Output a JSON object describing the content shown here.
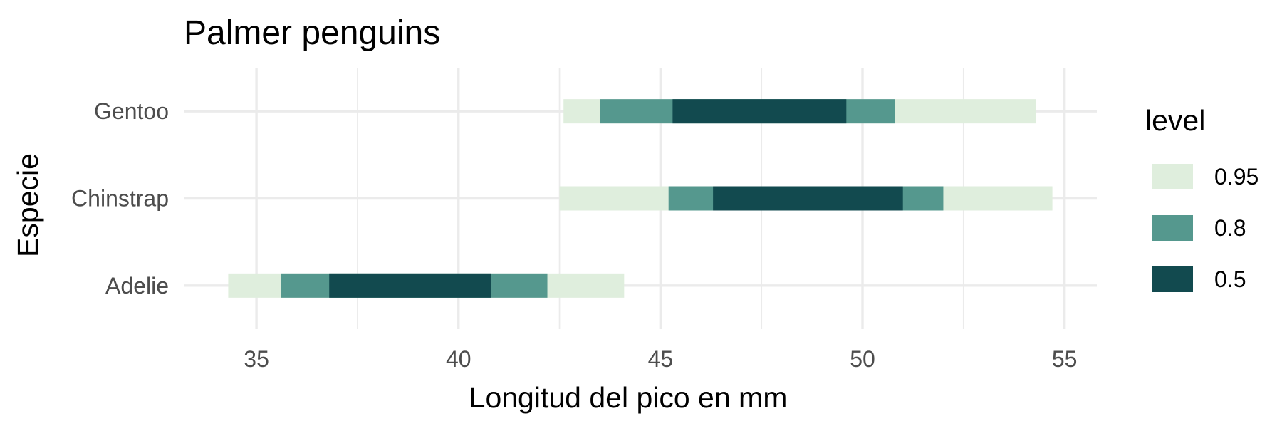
{
  "chart_data": {
    "type": "interval",
    "title": "Palmer penguins",
    "xlabel": "Longitud del pico en mm",
    "ylabel": "Especie",
    "xlim": [
      33.2,
      55.8
    ],
    "x_ticks": [
      35,
      40,
      45,
      50,
      55
    ],
    "x_tick_labels": [
      "35",
      "40",
      "45",
      "50",
      "55"
    ],
    "categories": [
      "Adelie",
      "Chinstrap",
      "Gentoo"
    ],
    "grid": true,
    "legend": {
      "title": "level",
      "position": "right",
      "entries": [
        {
          "label": "0.95",
          "color": "#DFEEDD"
        },
        {
          "label": "0.8",
          "color": "#55988E"
        },
        {
          "label": "0.5",
          "color": "#124A4F"
        }
      ]
    },
    "series": [
      {
        "level": "0.95",
        "color": "#DFEEDD",
        "intervals": [
          {
            "category": "Adelie",
            "low": 34.3,
            "high": 44.1
          },
          {
            "category": "Chinstrap",
            "low": 42.5,
            "high": 54.7
          },
          {
            "category": "Gentoo",
            "low": 42.6,
            "high": 54.3
          }
        ]
      },
      {
        "level": "0.8",
        "color": "#55988E",
        "intervals": [
          {
            "category": "Adelie",
            "low": 35.6,
            "high": 42.2
          },
          {
            "category": "Chinstrap",
            "low": 45.2,
            "high": 52.0
          },
          {
            "category": "Gentoo",
            "low": 43.5,
            "high": 50.8
          }
        ]
      },
      {
        "level": "0.5",
        "color": "#124A4F",
        "intervals": [
          {
            "category": "Adelie",
            "low": 36.8,
            "high": 40.8
          },
          {
            "category": "Chinstrap",
            "low": 46.3,
            "high": 51.0
          },
          {
            "category": "Gentoo",
            "low": 45.3,
            "high": 49.6
          }
        ]
      }
    ]
  }
}
